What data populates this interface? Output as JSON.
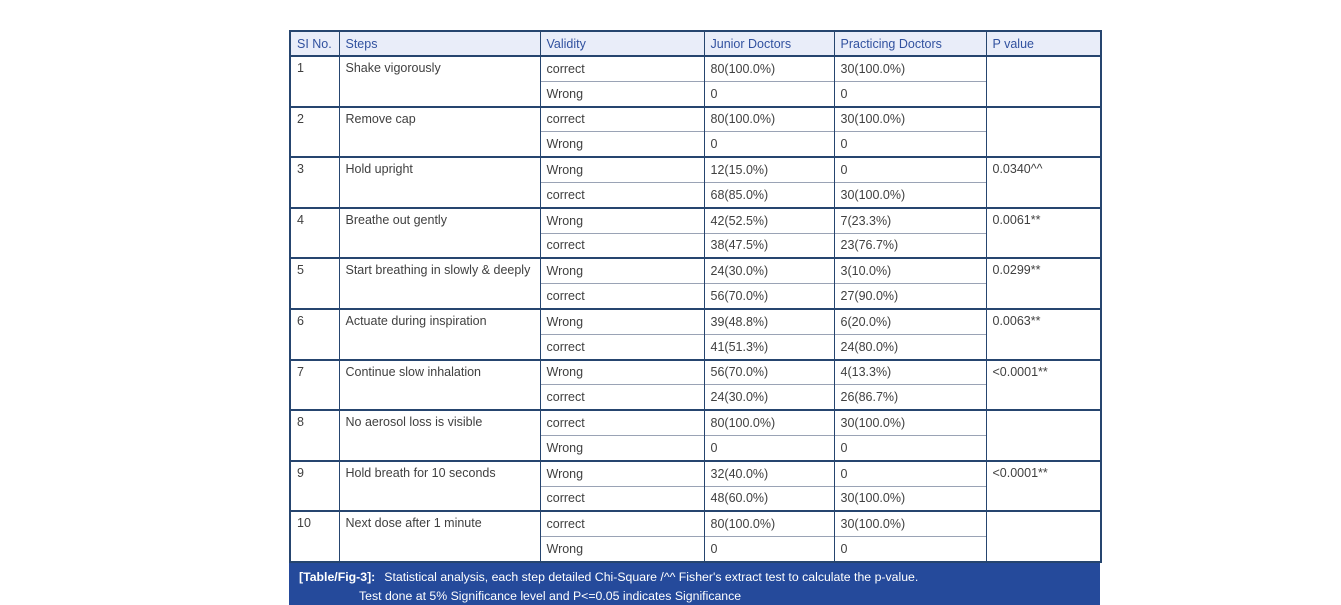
{
  "table": {
    "columns": [
      "SI No.",
      "Steps",
      "Validity",
      "Junior Doctors",
      "Practicing Doctors",
      "P value"
    ],
    "rows": [
      {
        "no": "1",
        "step": "Shake vigorously",
        "sub": [
          {
            "validity": "correct",
            "junior": "80(100.0%)",
            "practicing": "30(100.0%)"
          },
          {
            "validity": "Wrong",
            "junior": "0",
            "practicing": "0"
          }
        ],
        "p_value": ""
      },
      {
        "no": "2",
        "step": "Remove cap",
        "sub": [
          {
            "validity": "correct",
            "junior": "80(100.0%)",
            "practicing": "30(100.0%)"
          },
          {
            "validity": "Wrong",
            "junior": "0",
            "practicing": "0"
          }
        ],
        "p_value": ""
      },
      {
        "no": "3",
        "step": "Hold upright",
        "sub": [
          {
            "validity": "Wrong",
            "junior": "12(15.0%)",
            "practicing": "0"
          },
          {
            "validity": "correct",
            "junior": "68(85.0%)",
            "practicing": "30(100.0%)"
          }
        ],
        "p_value": "0.0340^^"
      },
      {
        "no": "4",
        "step": "Breathe out gently",
        "sub": [
          {
            "validity": "Wrong",
            "junior": "42(52.5%)",
            "practicing": "7(23.3%)"
          },
          {
            "validity": "correct",
            "junior": "38(47.5%)",
            "practicing": "23(76.7%)"
          }
        ],
        "p_value": "0.0061**"
      },
      {
        "no": "5",
        "step": "Start breathing in slowly & deeply",
        "sub": [
          {
            "validity": "Wrong",
            "junior": "24(30.0%)",
            "practicing": "3(10.0%)"
          },
          {
            "validity": "correct",
            "junior": "56(70.0%)",
            "practicing": "27(90.0%)"
          }
        ],
        "p_value": "0.0299**"
      },
      {
        "no": "6",
        "step": "Actuate during inspiration",
        "sub": [
          {
            "validity": "Wrong",
            "junior": "39(48.8%)",
            "practicing": "6(20.0%)"
          },
          {
            "validity": "correct",
            "junior": "41(51.3%)",
            "practicing": "24(80.0%)"
          }
        ],
        "p_value": "0.0063**"
      },
      {
        "no": "7",
        "step": "Continue slow inhalation",
        "sub": [
          {
            "validity": "Wrong",
            "junior": "56(70.0%)",
            "practicing": "4(13.3%)"
          },
          {
            "validity": "correct",
            "junior": "24(30.0%)",
            "practicing": "26(86.7%)"
          }
        ],
        "p_value": "<0.0001**"
      },
      {
        "no": "8",
        "step": "No aerosol loss is visible",
        "sub": [
          {
            "validity": "correct",
            "junior": "80(100.0%)",
            "practicing": "30(100.0%)"
          },
          {
            "validity": "Wrong",
            "junior": "0",
            "practicing": "0"
          }
        ],
        "p_value": ""
      },
      {
        "no": "9",
        "step": "Hold breath for 10 seconds",
        "sub": [
          {
            "validity": "Wrong",
            "junior": "32(40.0%)",
            "practicing": "0"
          },
          {
            "validity": "correct",
            "junior": "48(60.0%)",
            "practicing": "30(100.0%)"
          }
        ],
        "p_value": "<0.0001**"
      },
      {
        "no": "10",
        "step": "Next dose after 1 minute",
        "sub": [
          {
            "validity": "correct",
            "junior": "80(100.0%)",
            "practicing": "30(100.0%)"
          },
          {
            "validity": "Wrong",
            "junior": "0",
            "practicing": "0"
          }
        ],
        "p_value": ""
      }
    ]
  },
  "caption": {
    "label": "[Table/Fig-3]:",
    "line1": "Statistical analysis, each step detailed Chi-Square /^^ Fisher's extract test to calculate the p-value.",
    "line2": "Test done at 5% Significance level and P<=0.05 indicates Significance"
  },
  "colors": {
    "table_border": "#26456f",
    "header_background": "#e9edf9",
    "header_text": "#31519f",
    "caption_background": "#254a9b",
    "caption_text": "#ffffff",
    "body_text": "#404040"
  }
}
